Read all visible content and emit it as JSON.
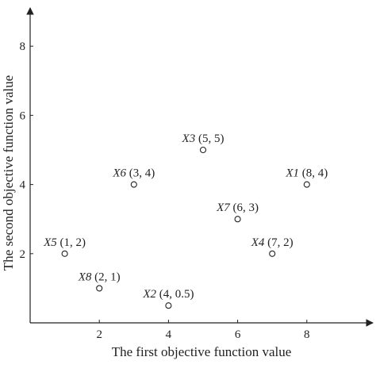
{
  "chart_data": {
    "type": "scatter",
    "xlabel": "The first objective function value",
    "ylabel": "The second objective function value",
    "xlim": [
      0,
      9.8
    ],
    "ylim": [
      0,
      9.2
    ],
    "xticks": [
      "2",
      "4",
      "6",
      "8"
    ],
    "yticks": [
      "2",
      "4",
      "6",
      "8"
    ],
    "grid": false,
    "points": [
      {
        "name": "X1",
        "coord": "(8, 4)",
        "x": 8,
        "y": 4
      },
      {
        "name": "X2",
        "coord": "(4, 0.5)",
        "x": 4,
        "y": 0.5
      },
      {
        "name": "X3",
        "coord": "(5, 5)",
        "x": 5,
        "y": 5
      },
      {
        "name": "X4",
        "coord": "(7, 2)",
        "x": 7,
        "y": 2
      },
      {
        "name": "X5",
        "coord": "(1, 2)",
        "x": 1,
        "y": 2
      },
      {
        "name": "X6",
        "coord": "(3, 4)",
        "x": 3,
        "y": 4
      },
      {
        "name": "X7",
        "coord": "(6, 3)",
        "x": 6,
        "y": 3
      },
      {
        "name": "X8",
        "coord": "(2, 1)",
        "x": 2,
        "y": 1
      }
    ]
  }
}
